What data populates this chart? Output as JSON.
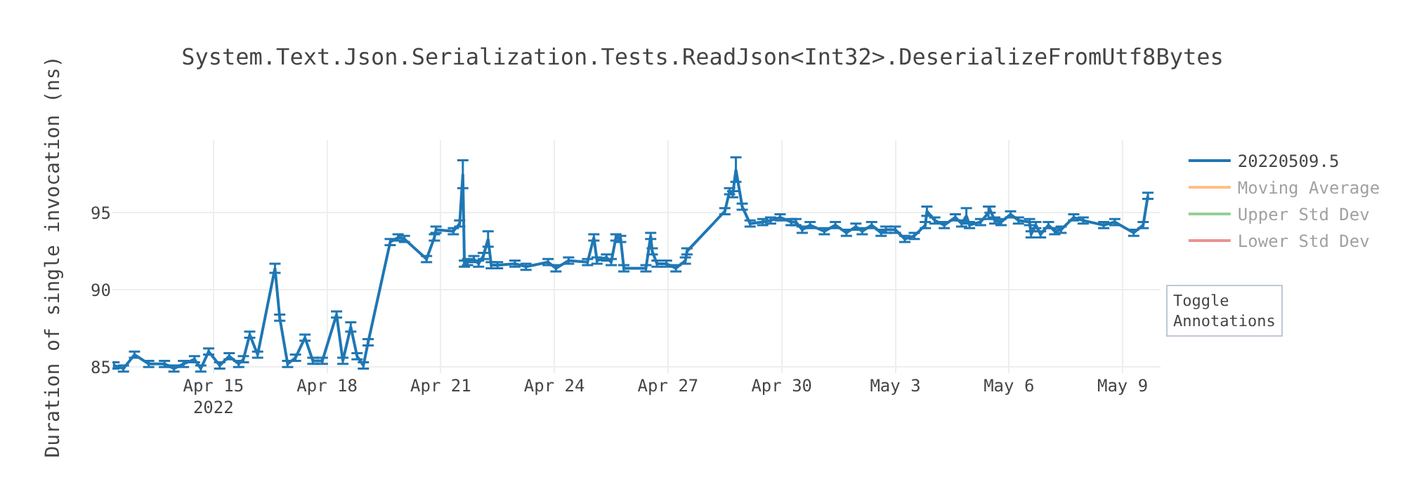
{
  "chart_data": {
    "type": "line",
    "title": "System.Text.Json.Serialization.Tests.ReadJson<Int32>.DeserializeFromUtf8Bytes",
    "ylabel": "Duration of single invocation (ns)",
    "x": [
      "2022-04-12T09:00",
      "2022-04-12T15:00",
      "2022-04-12T22:00",
      "2022-04-13T07:00",
      "2022-04-13T17:00",
      "2022-04-13T23:00",
      "2022-04-14T05:00",
      "2022-04-14T12:00",
      "2022-04-14T16:00",
      "2022-04-14T21:00",
      "2022-04-15T04:00",
      "2022-04-15T10:00",
      "2022-04-15T16:00",
      "2022-04-15T19:00",
      "2022-04-15T23:00",
      "2022-04-16T04:00",
      "2022-04-16T15:00",
      "2022-04-16T18:00",
      "2022-04-16T23:00",
      "2022-04-17T04:00",
      "2022-04-17T10:00",
      "2022-04-17T15:00",
      "2022-04-17T21:00",
      "2022-04-18T06:00",
      "2022-04-18T10:00",
      "2022-04-18T15:00",
      "2022-04-18T19:00",
      "2022-04-18T23:00",
      "2022-04-19T02:00",
      "2022-04-19T16:00",
      "2022-04-19T21:00",
      "2022-04-20T01:00",
      "2022-04-20T15:00",
      "2022-04-20T20:00",
      "2022-04-20T21:00",
      "2022-04-21T08:00",
      "2022-04-21T12:00",
      "2022-04-21T14:00",
      "2022-04-21T15:00",
      "2022-04-21T17:00",
      "2022-04-21T21:00",
      "2022-04-22T00:00",
      "2022-04-22T03:00",
      "2022-04-22T06:00",
      "2022-04-22T08:00",
      "2022-04-22T12:00",
      "2022-04-22T23:00",
      "2022-04-23T06:00",
      "2022-04-23T20:00",
      "2022-04-24T01:00",
      "2022-04-24T09:00",
      "2022-04-24T21:00",
      "2022-04-25T01:00",
      "2022-04-25T03:00",
      "2022-04-25T09:00",
      "2022-04-25T12:00",
      "2022-04-25T15:00",
      "2022-04-25T18:00",
      "2022-04-25T20:00",
      "2022-04-26T10:00",
      "2022-04-26T13:00",
      "2022-04-26T14:00",
      "2022-04-26T17:00",
      "2022-04-26T23:00",
      "2022-04-27T05:00",
      "2022-04-27T11:00",
      "2022-04-27T12:00",
      "2022-04-28T12:00",
      "2022-04-28T15:00",
      "2022-04-28T17:00",
      "2022-04-28T19:00",
      "2022-04-28T23:00",
      "2022-04-29T04:00",
      "2022-04-29T12:00",
      "2022-04-29T17:00",
      "2022-04-29T23:00",
      "2022-04-30T06:00",
      "2022-04-30T09:00",
      "2022-04-30T13:00",
      "2022-04-30T18:00",
      "2022-05-01T03:00",
      "2022-05-01T10:00",
      "2022-05-01T17:00",
      "2022-05-01T23:00",
      "2022-05-02T03:00",
      "2022-05-02T09:00",
      "2022-05-02T15:00",
      "2022-05-02T18:00",
      "2022-05-03T00:00",
      "2022-05-03T06:00",
      "2022-05-03T12:00",
      "2022-05-03T19:00",
      "2022-05-03T20:00",
      "2022-05-04T01:00",
      "2022-05-04T07:00",
      "2022-05-04T14:00",
      "2022-05-04T18:00",
      "2022-05-04T21:00",
      "2022-05-04T23:00",
      "2022-05-05T06:00",
      "2022-05-05T11:00",
      "2022-05-05T12:00",
      "2022-05-05T15:00",
      "2022-05-05T19:00",
      "2022-05-06T01:00",
      "2022-05-06T06:00",
      "2022-05-06T13:00",
      "2022-05-06T14:00",
      "2022-05-06T17:00",
      "2022-05-06T20:00",
      "2022-05-07T01:00",
      "2022-05-07T05:00",
      "2022-05-07T09:00",
      "2022-05-07T17:00",
      "2022-05-07T23:00",
      "2022-05-08T12:00",
      "2022-05-08T19:00",
      "2022-05-09T07:00",
      "2022-05-09T13:00",
      "2022-05-09T16:00"
    ],
    "series": [
      {
        "name": "20220509.5",
        "color": "#1f77b4",
        "values": [
          85.1,
          84.9,
          85.8,
          85.2,
          85.2,
          84.9,
          85.2,
          85.5,
          84.9,
          86.0,
          85.1,
          85.7,
          85.2,
          85.5,
          87.1,
          85.8,
          91.4,
          88.2,
          85.2,
          85.6,
          86.9,
          85.4,
          85.4,
          88.4,
          85.4,
          87.6,
          85.7,
          85.1,
          86.6,
          93.1,
          93.4,
          93.3,
          92.0,
          93.4,
          93.9,
          93.8,
          94.3,
          97.5,
          91.7,
          91.8,
          92.0,
          91.7,
          92.2,
          93.3,
          91.6,
          91.6,
          91.7,
          91.5,
          91.8,
          91.4,
          91.9,
          91.8,
          93.4,
          91.9,
          92.1,
          91.8,
          93.4,
          93.3,
          91.4,
          91.4,
          93.5,
          92.5,
          91.7,
          91.7,
          91.4,
          91.9,
          92.5,
          95.1,
          96.4,
          96.2,
          97.8,
          95.4,
          94.3,
          94.4,
          94.5,
          94.7,
          94.4,
          94.4,
          93.9,
          94.2,
          93.8,
          94.2,
          93.7,
          94.1,
          93.8,
          94.2,
          93.7,
          93.9,
          93.9,
          93.3,
          93.5,
          94.2,
          95.1,
          94.5,
          94.2,
          94.7,
          94.3,
          94.8,
          94.2,
          94.4,
          95.0,
          95.2,
          94.5,
          94.4,
          94.9,
          94.5,
          94.4,
          93.6,
          94.2,
          93.6,
          94.2,
          93.8,
          93.9,
          94.7,
          94.5,
          94.2,
          94.4,
          93.7,
          94.2,
          96.1
        ],
        "errors": [
          0.2,
          0.2,
          0.2,
          0.2,
          0.2,
          0.2,
          0.2,
          0.2,
          0.2,
          0.2,
          0.2,
          0.2,
          0.2,
          0.2,
          0.2,
          0.2,
          0.3,
          0.2,
          0.2,
          0.2,
          0.2,
          0.2,
          0.2,
          0.2,
          0.2,
          0.3,
          0.2,
          0.2,
          0.2,
          0.2,
          0.2,
          0.2,
          0.2,
          0.2,
          0.2,
          0.2,
          0.2,
          0.9,
          0.2,
          0.2,
          0.2,
          0.2,
          0.2,
          0.5,
          0.2,
          0.2,
          0.2,
          0.2,
          0.2,
          0.2,
          0.2,
          0.2,
          0.2,
          0.2,
          0.2,
          0.2,
          0.2,
          0.2,
          0.2,
          0.2,
          0.2,
          0.2,
          0.2,
          0.2,
          0.2,
          0.2,
          0.2,
          0.2,
          0.2,
          0.2,
          0.8,
          0.2,
          0.2,
          0.2,
          0.2,
          0.2,
          0.2,
          0.2,
          0.2,
          0.2,
          0.2,
          0.2,
          0.2,
          0.2,
          0.2,
          0.2,
          0.2,
          0.2,
          0.2,
          0.2,
          0.2,
          0.2,
          0.3,
          0.2,
          0.2,
          0.2,
          0.2,
          0.5,
          0.2,
          0.2,
          0.4,
          0.2,
          0.2,
          0.2,
          0.2,
          0.2,
          0.2,
          0.2,
          0.2,
          0.2,
          0.2,
          0.2,
          0.2,
          0.2,
          0.2,
          0.2,
          0.2,
          0.2,
          0.2,
          0.2
        ]
      },
      {
        "name": "Moving Average",
        "color": "#ff7f0e",
        "values": [
          null,
          null,
          null,
          null,
          null,
          null,
          null,
          null,
          null,
          null,
          null,
          null,
          null,
          null,
          null,
          null,
          null,
          null,
          null,
          null,
          null,
          null,
          null,
          null,
          null,
          null,
          null,
          null,
          null,
          null,
          null,
          null,
          null,
          null,
          null,
          null,
          null,
          null,
          null,
          null,
          null,
          null,
          null,
          null,
          null,
          null,
          null,
          null,
          null,
          null,
          null,
          null,
          null,
          null,
          null,
          null,
          null,
          null,
          null,
          null,
          null,
          null,
          null,
          null,
          null,
          null,
          null,
          null,
          null,
          null,
          null,
          null,
          null,
          null,
          null,
          null,
          null,
          null,
          null,
          null,
          null,
          null,
          null,
          null,
          null,
          null,
          null,
          null,
          null,
          null,
          null,
          null,
          null,
          null,
          null,
          null,
          null,
          null,
          null,
          null,
          null,
          null,
          null,
          null,
          null,
          null,
          null,
          null,
          null,
          null,
          null,
          null,
          null,
          null,
          null,
          null,
          null,
          null,
          null,
          null
        ]
      },
      {
        "name": "Upper Std Dev",
        "color": "#2ca02c",
        "values": [
          null,
          null,
          null,
          null,
          null,
          null,
          null,
          null,
          null,
          null,
          null,
          null,
          null,
          null,
          null,
          null,
          null,
          null,
          null,
          null,
          null,
          null,
          null,
          null,
          null,
          null,
          null,
          null,
          null,
          null,
          null,
          null,
          null,
          null,
          null,
          null,
          null,
          null,
          null,
          null,
          null,
          null,
          null,
          null,
          null,
          null,
          null,
          null,
          null,
          null,
          null,
          null,
          null,
          null,
          null,
          null,
          null,
          null,
          null,
          null,
          null,
          null,
          null,
          null,
          null,
          null,
          null,
          null,
          null,
          null,
          null,
          null,
          null,
          null,
          null,
          null,
          null,
          null,
          null,
          null,
          null,
          null,
          null,
          null,
          null,
          null,
          null,
          null,
          null,
          null,
          null,
          null,
          null,
          null,
          null,
          null,
          null,
          null,
          null,
          null,
          null,
          null,
          null,
          null,
          null,
          null,
          null,
          null,
          null,
          null,
          null,
          null,
          null,
          null,
          null,
          null,
          null,
          null,
          null,
          null
        ]
      },
      {
        "name": "Lower Std Dev",
        "color": "#d62728",
        "values": [
          null,
          null,
          null,
          null,
          null,
          null,
          null,
          null,
          null,
          null,
          null,
          null,
          null,
          null,
          null,
          null,
          null,
          null,
          null,
          null,
          null,
          null,
          null,
          null,
          null,
          null,
          null,
          null,
          null,
          null,
          null,
          null,
          null,
          null,
          null,
          null,
          null,
          null,
          null,
          null,
          null,
          null,
          null,
          null,
          null,
          null,
          null,
          null,
          null,
          null,
          null,
          null,
          null,
          null,
          null,
          null,
          null,
          null,
          null,
          null,
          null,
          null,
          null,
          null,
          null,
          null,
          null,
          null,
          null,
          null,
          null,
          null,
          null,
          null,
          null,
          null,
          null,
          null,
          null,
          null,
          null,
          null,
          null,
          null,
          null,
          null,
          null,
          null,
          null,
          null,
          null,
          null,
          null,
          null,
          null,
          null,
          null,
          null,
          null,
          null,
          null,
          null,
          null,
          null,
          null,
          null,
          null,
          null,
          null,
          null,
          null,
          null,
          null,
          null,
          null,
          null,
          null,
          null,
          null,
          null
        ]
      }
    ],
    "xlim": [
      "2022-04-12T08:00",
      "2022-05-10T00:00"
    ],
    "xticks": [
      {
        "value": "2022-04-15",
        "label": "Apr 15\n2022"
      },
      {
        "value": "2022-04-18",
        "label": "Apr 18"
      },
      {
        "value": "2022-04-21",
        "label": "Apr 21"
      },
      {
        "value": "2022-04-24",
        "label": "Apr 24"
      },
      {
        "value": "2022-04-27",
        "label": "Apr 27"
      },
      {
        "value": "2022-04-30",
        "label": "Apr 30"
      },
      {
        "value": "2022-05-03",
        "label": "May 3"
      },
      {
        "value": "2022-05-06",
        "label": "May 6"
      },
      {
        "value": "2022-05-09",
        "label": "May 9"
      }
    ],
    "ylim": [
      84.6,
      99.7
    ],
    "yticks": [
      85,
      90,
      95
    ],
    "grid": true,
    "legend": "top right",
    "marker": "none",
    "line_style": "solid",
    "annotations": [
      "Toggle\nAnnotations"
    ]
  }
}
